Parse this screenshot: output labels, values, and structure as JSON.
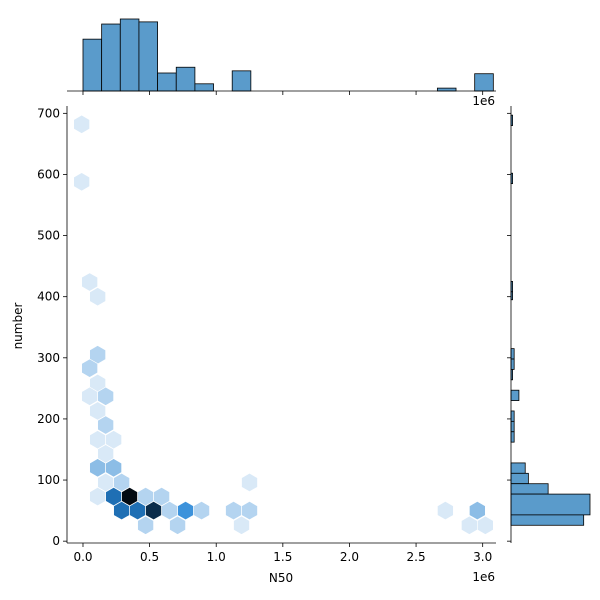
{
  "chart_data": {
    "type": "jointplot-hexbin",
    "xlabel": "N50",
    "ylabel": "number",
    "x_offset_label": "1e6",
    "top_offset_label": "1e6",
    "xlim": [
      -0.12,
      3.1
    ],
    "ylim": [
      -3,
      712
    ],
    "xticks": [
      {
        "value": 0.0,
        "label": "0.0"
      },
      {
        "value": 0.5,
        "label": "0.5"
      },
      {
        "value": 1.0,
        "label": "1.0"
      },
      {
        "value": 1.5,
        "label": "1.5"
      },
      {
        "value": 2.0,
        "label": "2.0"
      },
      {
        "value": 2.5,
        "label": "2.5"
      },
      {
        "value": 3.0,
        "label": "3.0"
      }
    ],
    "yticks": [
      {
        "value": 0,
        "label": "0"
      },
      {
        "value": 100,
        "label": "100"
      },
      {
        "value": 200,
        "label": "200"
      },
      {
        "value": 300,
        "label": "300"
      },
      {
        "value": 400,
        "label": "400"
      },
      {
        "value": 500,
        "label": "500"
      },
      {
        "value": 600,
        "label": "600"
      },
      {
        "value": 700,
        "label": "700"
      }
    ],
    "hex_colors": [
      "#d9e9f7",
      "#b4d4f0",
      "#8cbde6",
      "#3c92db",
      "#1f6fb4",
      "#0b2c4a",
      "#020a12"
    ],
    "hexbins": [
      {
        "x": -0.01,
        "y": 682,
        "level": 0
      },
      {
        "x": -0.01,
        "y": 588,
        "level": 0
      },
      {
        "x": 0.05,
        "y": 424,
        "level": 0
      },
      {
        "x": 0.11,
        "y": 400,
        "level": 0
      },
      {
        "x": 0.11,
        "y": 305,
        "level": 1
      },
      {
        "x": 0.05,
        "y": 283,
        "level": 1
      },
      {
        "x": 0.11,
        "y": 258,
        "level": 0
      },
      {
        "x": 0.05,
        "y": 237,
        "level": 0
      },
      {
        "x": 0.17,
        "y": 237,
        "level": 1
      },
      {
        "x": 0.11,
        "y": 213,
        "level": 0
      },
      {
        "x": 0.17,
        "y": 190,
        "level": 1
      },
      {
        "x": 0.11,
        "y": 166,
        "level": 0
      },
      {
        "x": 0.23,
        "y": 166,
        "level": 0
      },
      {
        "x": 0.17,
        "y": 143,
        "level": 0
      },
      {
        "x": 0.11,
        "y": 120,
        "level": 2
      },
      {
        "x": 0.23,
        "y": 120,
        "level": 2
      },
      {
        "x": 0.17,
        "y": 96,
        "level": 0
      },
      {
        "x": 0.29,
        "y": 96,
        "level": 1
      },
      {
        "x": 0.11,
        "y": 73,
        "level": 0
      },
      {
        "x": 0.23,
        "y": 73,
        "level": 4
      },
      {
        "x": 0.35,
        "y": 73,
        "level": 6
      },
      {
        "x": 0.47,
        "y": 73,
        "level": 1
      },
      {
        "x": 0.59,
        "y": 73,
        "level": 1
      },
      {
        "x": 0.29,
        "y": 50,
        "level": 4
      },
      {
        "x": 0.41,
        "y": 50,
        "level": 4
      },
      {
        "x": 0.53,
        "y": 50,
        "level": 5
      },
      {
        "x": 0.65,
        "y": 50,
        "level": 1
      },
      {
        "x": 0.77,
        "y": 50,
        "level": 3
      },
      {
        "x": 0.89,
        "y": 50,
        "level": 1
      },
      {
        "x": 1.13,
        "y": 50,
        "level": 1
      },
      {
        "x": 1.25,
        "y": 50,
        "level": 1
      },
      {
        "x": 0.47,
        "y": 26,
        "level": 1
      },
      {
        "x": 0.71,
        "y": 26,
        "level": 1
      },
      {
        "x": 1.19,
        "y": 26,
        "level": 0
      },
      {
        "x": 1.25,
        "y": 96,
        "level": 0
      },
      {
        "x": 2.72,
        "y": 50,
        "level": 0
      },
      {
        "x": 2.96,
        "y": 50,
        "level": 2
      },
      {
        "x": 2.9,
        "y": 26,
        "level": 0
      },
      {
        "x": 3.02,
        "y": 26,
        "level": 0
      }
    ],
    "top_hist": {
      "bins": [
        {
          "x0": 0.0,
          "x1": 0.14,
          "count": 0.72
        },
        {
          "x0": 0.14,
          "x1": 0.28,
          "count": 0.93
        },
        {
          "x0": 0.28,
          "x1": 0.42,
          "count": 1.0
        },
        {
          "x0": 0.42,
          "x1": 0.56,
          "count": 0.96
        },
        {
          "x0": 0.56,
          "x1": 0.7,
          "count": 0.25
        },
        {
          "x0": 0.7,
          "x1": 0.84,
          "count": 0.33
        },
        {
          "x0": 0.84,
          "x1": 0.98,
          "count": 0.1
        },
        {
          "x0": 1.12,
          "x1": 1.26,
          "count": 0.28
        },
        {
          "x0": 2.66,
          "x1": 2.8,
          "count": 0.04
        },
        {
          "x0": 2.94,
          "x1": 3.08,
          "count": 0.24
        }
      ]
    },
    "right_hist": {
      "bins": [
        {
          "y0": 680,
          "y1": 697,
          "count": 0.02
        },
        {
          "y0": 585,
          "y1": 602,
          "count": 0.02
        },
        {
          "y0": 408,
          "y1": 425,
          "count": 0.02
        },
        {
          "y0": 395,
          "y1": 408,
          "count": 0.02
        },
        {
          "y0": 298,
          "y1": 315,
          "count": 0.04
        },
        {
          "y0": 281,
          "y1": 298,
          "count": 0.04
        },
        {
          "y0": 264,
          "y1": 281,
          "count": 0.02
        },
        {
          "y0": 230,
          "y1": 247,
          "count": 0.1
        },
        {
          "y0": 196,
          "y1": 213,
          "count": 0.04
        },
        {
          "y0": 179,
          "y1": 196,
          "count": 0.04
        },
        {
          "y0": 162,
          "y1": 179,
          "count": 0.04
        },
        {
          "y0": 111,
          "y1": 128,
          "count": 0.18
        },
        {
          "y0": 94,
          "y1": 111,
          "count": 0.22
        },
        {
          "y0": 77,
          "y1": 94,
          "count": 0.47
        },
        {
          "y0": 43,
          "y1": 77,
          "count": 1.0
        },
        {
          "y0": 26,
          "y1": 43,
          "count": 0.92
        }
      ]
    }
  }
}
